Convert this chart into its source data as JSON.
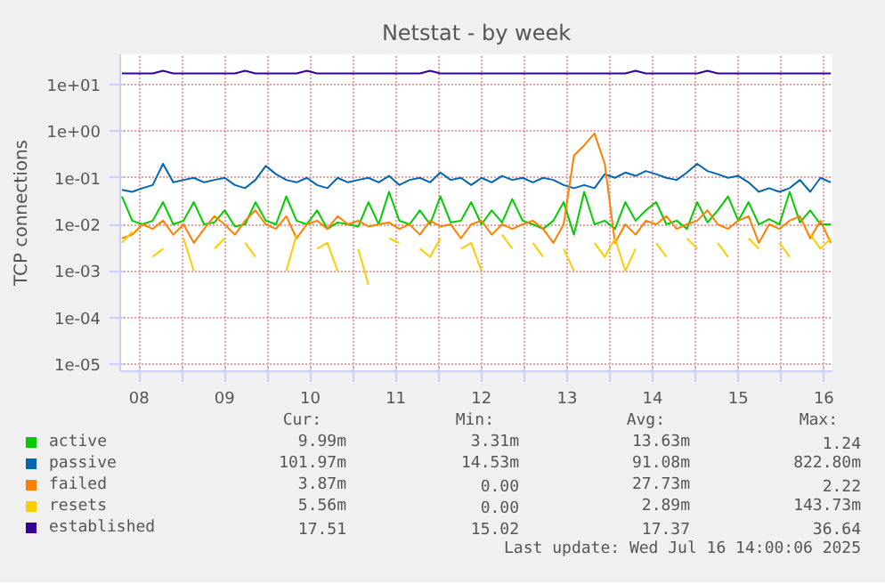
{
  "chart_data": {
    "type": "line",
    "title": "Netstat - by week",
    "ylabel": "TCP connections",
    "log": "y",
    "grid": true,
    "legend": "bottom",
    "xlim": [
      8.28,
      16.6
    ],
    "ylim": [
      7e-06,
      45
    ],
    "xticks": [
      {
        "value": 8.5,
        "label": "08"
      },
      {
        "value": 9.5,
        "label": "09"
      },
      {
        "value": 10.5,
        "label": "10"
      },
      {
        "value": 11.5,
        "label": "11"
      },
      {
        "value": 12.5,
        "label": "12"
      },
      {
        "value": 13.5,
        "label": "13"
      },
      {
        "value": 14.5,
        "label": "14"
      },
      {
        "value": 15.5,
        "label": "15"
      },
      {
        "value": 16.5,
        "label": "16"
      },
      {
        "value": 9,
        "label": null
      },
      {
        "value": 10,
        "label": null
      },
      {
        "value": 11,
        "label": null
      },
      {
        "value": 12,
        "label": null
      },
      {
        "value": 13,
        "label": null
      },
      {
        "value": 14,
        "label": null
      },
      {
        "value": 15,
        "label": null
      },
      {
        "value": 16,
        "label": null
      }
    ],
    "yticks": [
      {
        "value": 10,
        "label": "1e+01"
      },
      {
        "value": 1,
        "label": "1e+00"
      },
      {
        "value": 0.1,
        "label": "1e-01"
      },
      {
        "value": 0.01,
        "label": "1e-02"
      },
      {
        "value": 0.001,
        "label": "1e-03"
      },
      {
        "value": 0.0001,
        "label": "1e-04"
      },
      {
        "value": 1e-05,
        "label": "1e-05"
      }
    ],
    "x": [
      8.3,
      8.42,
      8.54,
      8.66,
      8.78,
      8.9,
      9.02,
      9.14,
      9.26,
      9.38,
      9.5,
      9.62,
      9.74,
      9.86,
      9.98,
      10.1,
      10.22,
      10.34,
      10.46,
      10.58,
      10.7,
      10.82,
      10.94,
      11.06,
      11.18,
      11.3,
      11.42,
      11.54,
      11.66,
      11.78,
      11.9,
      12.02,
      12.14,
      12.26,
      12.38,
      12.5,
      12.62,
      12.74,
      12.86,
      12.98,
      13.1,
      13.22,
      13.34,
      13.46,
      13.58,
      13.7,
      13.82,
      13.94,
      14.06,
      14.18,
      14.3,
      14.42,
      14.54,
      14.66,
      14.78,
      14.9,
      15.02,
      15.14,
      15.26,
      15.38,
      15.5,
      15.62,
      15.74,
      15.86,
      15.98,
      16.1,
      16.22,
      16.34,
      16.46,
      16.58
    ],
    "series": [
      {
        "name": "active",
        "color": "#00cc00",
        "values": [
          0.04,
          0.012,
          0.01,
          0.012,
          0.03,
          0.01,
          0.012,
          0.03,
          0.01,
          0.011,
          0.02,
          0.009,
          0.01,
          0.03,
          0.012,
          0.01,
          0.04,
          0.012,
          0.01,
          0.02,
          0.008,
          0.011,
          0.01,
          0.009,
          0.03,
          0.01,
          0.05,
          0.012,
          0.01,
          0.02,
          0.01,
          0.04,
          0.011,
          0.012,
          0.03,
          0.01,
          0.02,
          0.011,
          0.035,
          0.012,
          0.01,
          0.008,
          0.012,
          0.03,
          0.006,
          0.05,
          0.01,
          0.012,
          0.008,
          0.03,
          0.012,
          0.02,
          0.03,
          0.01,
          0.012,
          0.008,
          0.03,
          0.011,
          0.02,
          0.04,
          0.012,
          0.03,
          0.01,
          0.013,
          0.01,
          0.05,
          0.011,
          0.02,
          0.01,
          0.01
        ]
      },
      {
        "name": "passive",
        "color": "#0066b3",
        "values": [
          0.055,
          0.05,
          0.06,
          0.07,
          0.2,
          0.08,
          0.09,
          0.1,
          0.08,
          0.09,
          0.1,
          0.07,
          0.06,
          0.09,
          0.18,
          0.12,
          0.09,
          0.08,
          0.1,
          0.07,
          0.06,
          0.1,
          0.08,
          0.09,
          0.1,
          0.08,
          0.11,
          0.07,
          0.09,
          0.1,
          0.08,
          0.13,
          0.09,
          0.1,
          0.07,
          0.1,
          0.08,
          0.11,
          0.09,
          0.1,
          0.08,
          0.1,
          0.09,
          0.07,
          0.06,
          0.07,
          0.06,
          0.12,
          0.1,
          0.13,
          0.11,
          0.14,
          0.12,
          0.1,
          0.09,
          0.13,
          0.2,
          0.14,
          0.12,
          0.1,
          0.11,
          0.08,
          0.05,
          0.06,
          0.05,
          0.06,
          0.09,
          0.05,
          0.1,
          0.08
        ]
      },
      {
        "name": "failed",
        "color": "#ff8000",
        "values": [
          0.005,
          0.006,
          0.01,
          0.008,
          0.012,
          0.006,
          0.01,
          0.004,
          0.008,
          0.015,
          0.01,
          0.006,
          0.012,
          0.02,
          0.01,
          0.008,
          0.015,
          0.005,
          0.01,
          0.012,
          0.008,
          0.015,
          0.01,
          0.012,
          0.009,
          0.01,
          0.011,
          0.008,
          0.01,
          0.006,
          0.012,
          0.009,
          0.01,
          0.005,
          0.01,
          0.012,
          0.006,
          0.01,
          0.008,
          0.01,
          0.012,
          0.008,
          0.004,
          0.01,
          0.3,
          0.5,
          0.9,
          0.2,
          0.004,
          0.01,
          0.006,
          0.012,
          0.01,
          0.015,
          0.008,
          0.01,
          0.012,
          0.02,
          0.01,
          0.008,
          0.012,
          0.015,
          0.004,
          0.01,
          0.008,
          0.012,
          0.015,
          0.005,
          0.012,
          0.004
        ]
      },
      {
        "name": "resets",
        "color": "#ffcc00",
        "values": [
          0.004,
          0.007,
          null,
          0.002,
          0.003,
          null,
          0.005,
          0.001,
          null,
          0.003,
          0.005,
          null,
          0.004,
          0.002,
          null,
          null,
          0.001,
          0.006,
          null,
          0.003,
          0.004,
          0.001,
          null,
          0.003,
          0.0005,
          null,
          0.005,
          0.004,
          null,
          0.003,
          0.002,
          0.005,
          null,
          0.003,
          0.004,
          0.001,
          null,
          0.006,
          0.003,
          null,
          0.004,
          0.002,
          null,
          0.003,
          0.001,
          null,
          0.004,
          0.002,
          0.005,
          0.001,
          0.003,
          null,
          0.004,
          0.002,
          null,
          0.005,
          0.003,
          null,
          0.004,
          0.002,
          null,
          0.005,
          0.003,
          null,
          0.004,
          0.002,
          null,
          0.006,
          0.003,
          0.005
        ]
      },
      {
        "name": "established",
        "color": "#330099",
        "values": [
          17.5,
          17.5,
          17.5,
          17.5,
          20,
          17.5,
          17.5,
          17.5,
          17.5,
          17.5,
          17.5,
          17.5,
          20,
          17.5,
          17.5,
          17.5,
          17.5,
          17.5,
          20,
          17.5,
          17.5,
          17.5,
          17.5,
          17.5,
          17.5,
          17.5,
          17.5,
          17.5,
          17.5,
          17.5,
          20,
          17.5,
          17.5,
          17.5,
          17.5,
          17.5,
          17.5,
          17.5,
          17.5,
          17.5,
          17.5,
          17.5,
          17.5,
          17.5,
          17.5,
          17.5,
          17.5,
          17.5,
          17.5,
          17.5,
          20,
          17.5,
          17.5,
          17.5,
          17.5,
          17.5,
          17.5,
          20,
          17.5,
          17.5,
          17.5,
          17.5,
          17.5,
          17.5,
          17.5,
          17.5,
          17.5,
          17.5,
          17.5,
          17.5
        ]
      }
    ],
    "annotations": [
      "Cur:",
      "Min:",
      "Avg:",
      "Max:",
      "9.99m",
      "3.31m",
      "13.63m",
      "1.24",
      "101.97m",
      "14.53m",
      "91.08m",
      "822.80m",
      "3.87m",
      "0.00",
      "27.73m",
      "2.22",
      "5.56m",
      "0.00",
      "2.89m",
      "143.73m",
      "17.51",
      "15.02",
      "17.37",
      "36.64",
      "Last update: Wed Jul 16 14:00:06 2025"
    ]
  }
}
